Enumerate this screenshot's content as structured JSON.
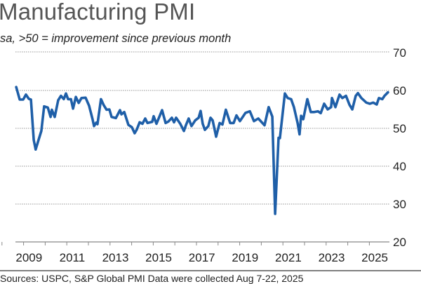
{
  "chart_data": {
    "type": "line",
    "title": "Manufacturing PMI",
    "subtitle": "sa, >50 = improvement since previous month",
    "xlabel": "",
    "ylabel": "",
    "ylim": [
      20,
      70
    ],
    "xlim": [
      2008,
      2025.7
    ],
    "yticks": [
      "70",
      "60",
      "50",
      "40",
      "30",
      "20"
    ],
    "xticks": [
      "2009",
      "2011",
      "2013",
      "2015",
      "2017",
      "2019",
      "2021",
      "2023",
      "2025"
    ],
    "grid": "horizontal dotted",
    "line_color": "#1f5fa8",
    "x": [
      2008.41,
      2008.57,
      2008.73,
      2008.86,
      2008.99,
      2009.09,
      2009.22,
      2009.31,
      2009.44,
      2009.57,
      2009.7,
      2009.87,
      2010.0,
      2010.06,
      2010.19,
      2010.35,
      2010.48,
      2010.61,
      2010.71,
      2010.81,
      2010.94,
      2011.04,
      2011.17,
      2011.3,
      2011.43,
      2011.62,
      2011.78,
      2011.94,
      2012.01,
      2012.11,
      2012.17,
      2012.33,
      2012.46,
      2012.59,
      2012.72,
      2012.82,
      2013.02,
      2013.21,
      2013.28,
      2013.41,
      2013.6,
      2013.76,
      2013.89,
      2013.99,
      2014.12,
      2014.25,
      2014.38,
      2014.48,
      2014.7,
      2014.77,
      2014.9,
      2015.16,
      2015.32,
      2015.45,
      2015.61,
      2015.71,
      2015.81,
      2016.0,
      2016.17,
      2016.26,
      2016.39,
      2016.52,
      2016.69,
      2016.85,
      2016.94,
      2017.04,
      2017.14,
      2017.3,
      2017.4,
      2017.5,
      2017.66,
      2017.82,
      2017.95,
      2018.11,
      2018.31,
      2018.47,
      2018.6,
      2018.76,
      2019.02,
      2019.22,
      2019.41,
      2019.61,
      2019.9,
      2020.09,
      2020.26,
      2020.39,
      2020.55,
      2020.61,
      2020.84,
      2020.97,
      2021.13,
      2021.26,
      2021.43,
      2021.52,
      2021.59,
      2021.69,
      2021.88,
      2022.04,
      2022.2,
      2022.37,
      2022.5,
      2022.66,
      2022.82,
      2022.98,
      2023.02,
      2023.18,
      2023.37,
      2023.5,
      2023.67,
      2023.83,
      2023.96,
      2024.12,
      2024.22,
      2024.38,
      2024.61,
      2024.77,
      2024.93,
      2025.09,
      2025.19,
      2025.35,
      2025.45,
      2025.61
    ],
    "values": [
      60.9,
      57.6,
      57.6,
      58.9,
      57.8,
      57.6,
      46.9,
      44.4,
      46.9,
      49.3,
      55.8,
      55.5,
      53.0,
      54.9,
      53.0,
      57.4,
      58.6,
      57.7,
      59.2,
      57.7,
      57.7,
      55.2,
      58.3,
      56.7,
      58.0,
      58.1,
      56.0,
      52.4,
      50.6,
      51.5,
      51.1,
      57.7,
      56.1,
      54.9,
      55.0,
      53.0,
      52.7,
      54.8,
      53.7,
      54.3,
      50.9,
      50.3,
      48.7,
      49.7,
      51.6,
      51.2,
      52.6,
      51.4,
      51.7,
      53.2,
      51.2,
      54.8,
      51.4,
      51.8,
      52.8,
      51.6,
      52.8,
      51.2,
      49.3,
      50.8,
      52.6,
      50.6,
      52.1,
      52.8,
      54.6,
      51.2,
      49.6,
      50.6,
      52.8,
      52.1,
      47.8,
      51.4,
      51.0,
      54.9,
      51.4,
      51.4,
      53.4,
      51.9,
      54.1,
      54.5,
      51.9,
      52.6,
      50.8,
      55.6,
      53.1,
      27.4,
      47.5,
      47.4,
      59.2,
      58.0,
      57.7,
      55.6,
      51.4,
      48.4,
      53.3,
      52.4,
      57.7,
      54.3,
      54.3,
      54.5,
      54.0,
      56.5,
      55.0,
      55.6,
      58.0,
      55.6,
      58.9,
      58.0,
      58.6,
      56.2,
      55.0,
      58.6,
      59.3,
      58.0,
      56.8,
      56.5,
      56.8,
      56.3,
      58.0,
      57.7,
      58.6,
      59.5
    ]
  },
  "footer": {
    "text": "Sources: USPC, S&P Global PMI     Data were collected Aug 7-22, 2025"
  }
}
